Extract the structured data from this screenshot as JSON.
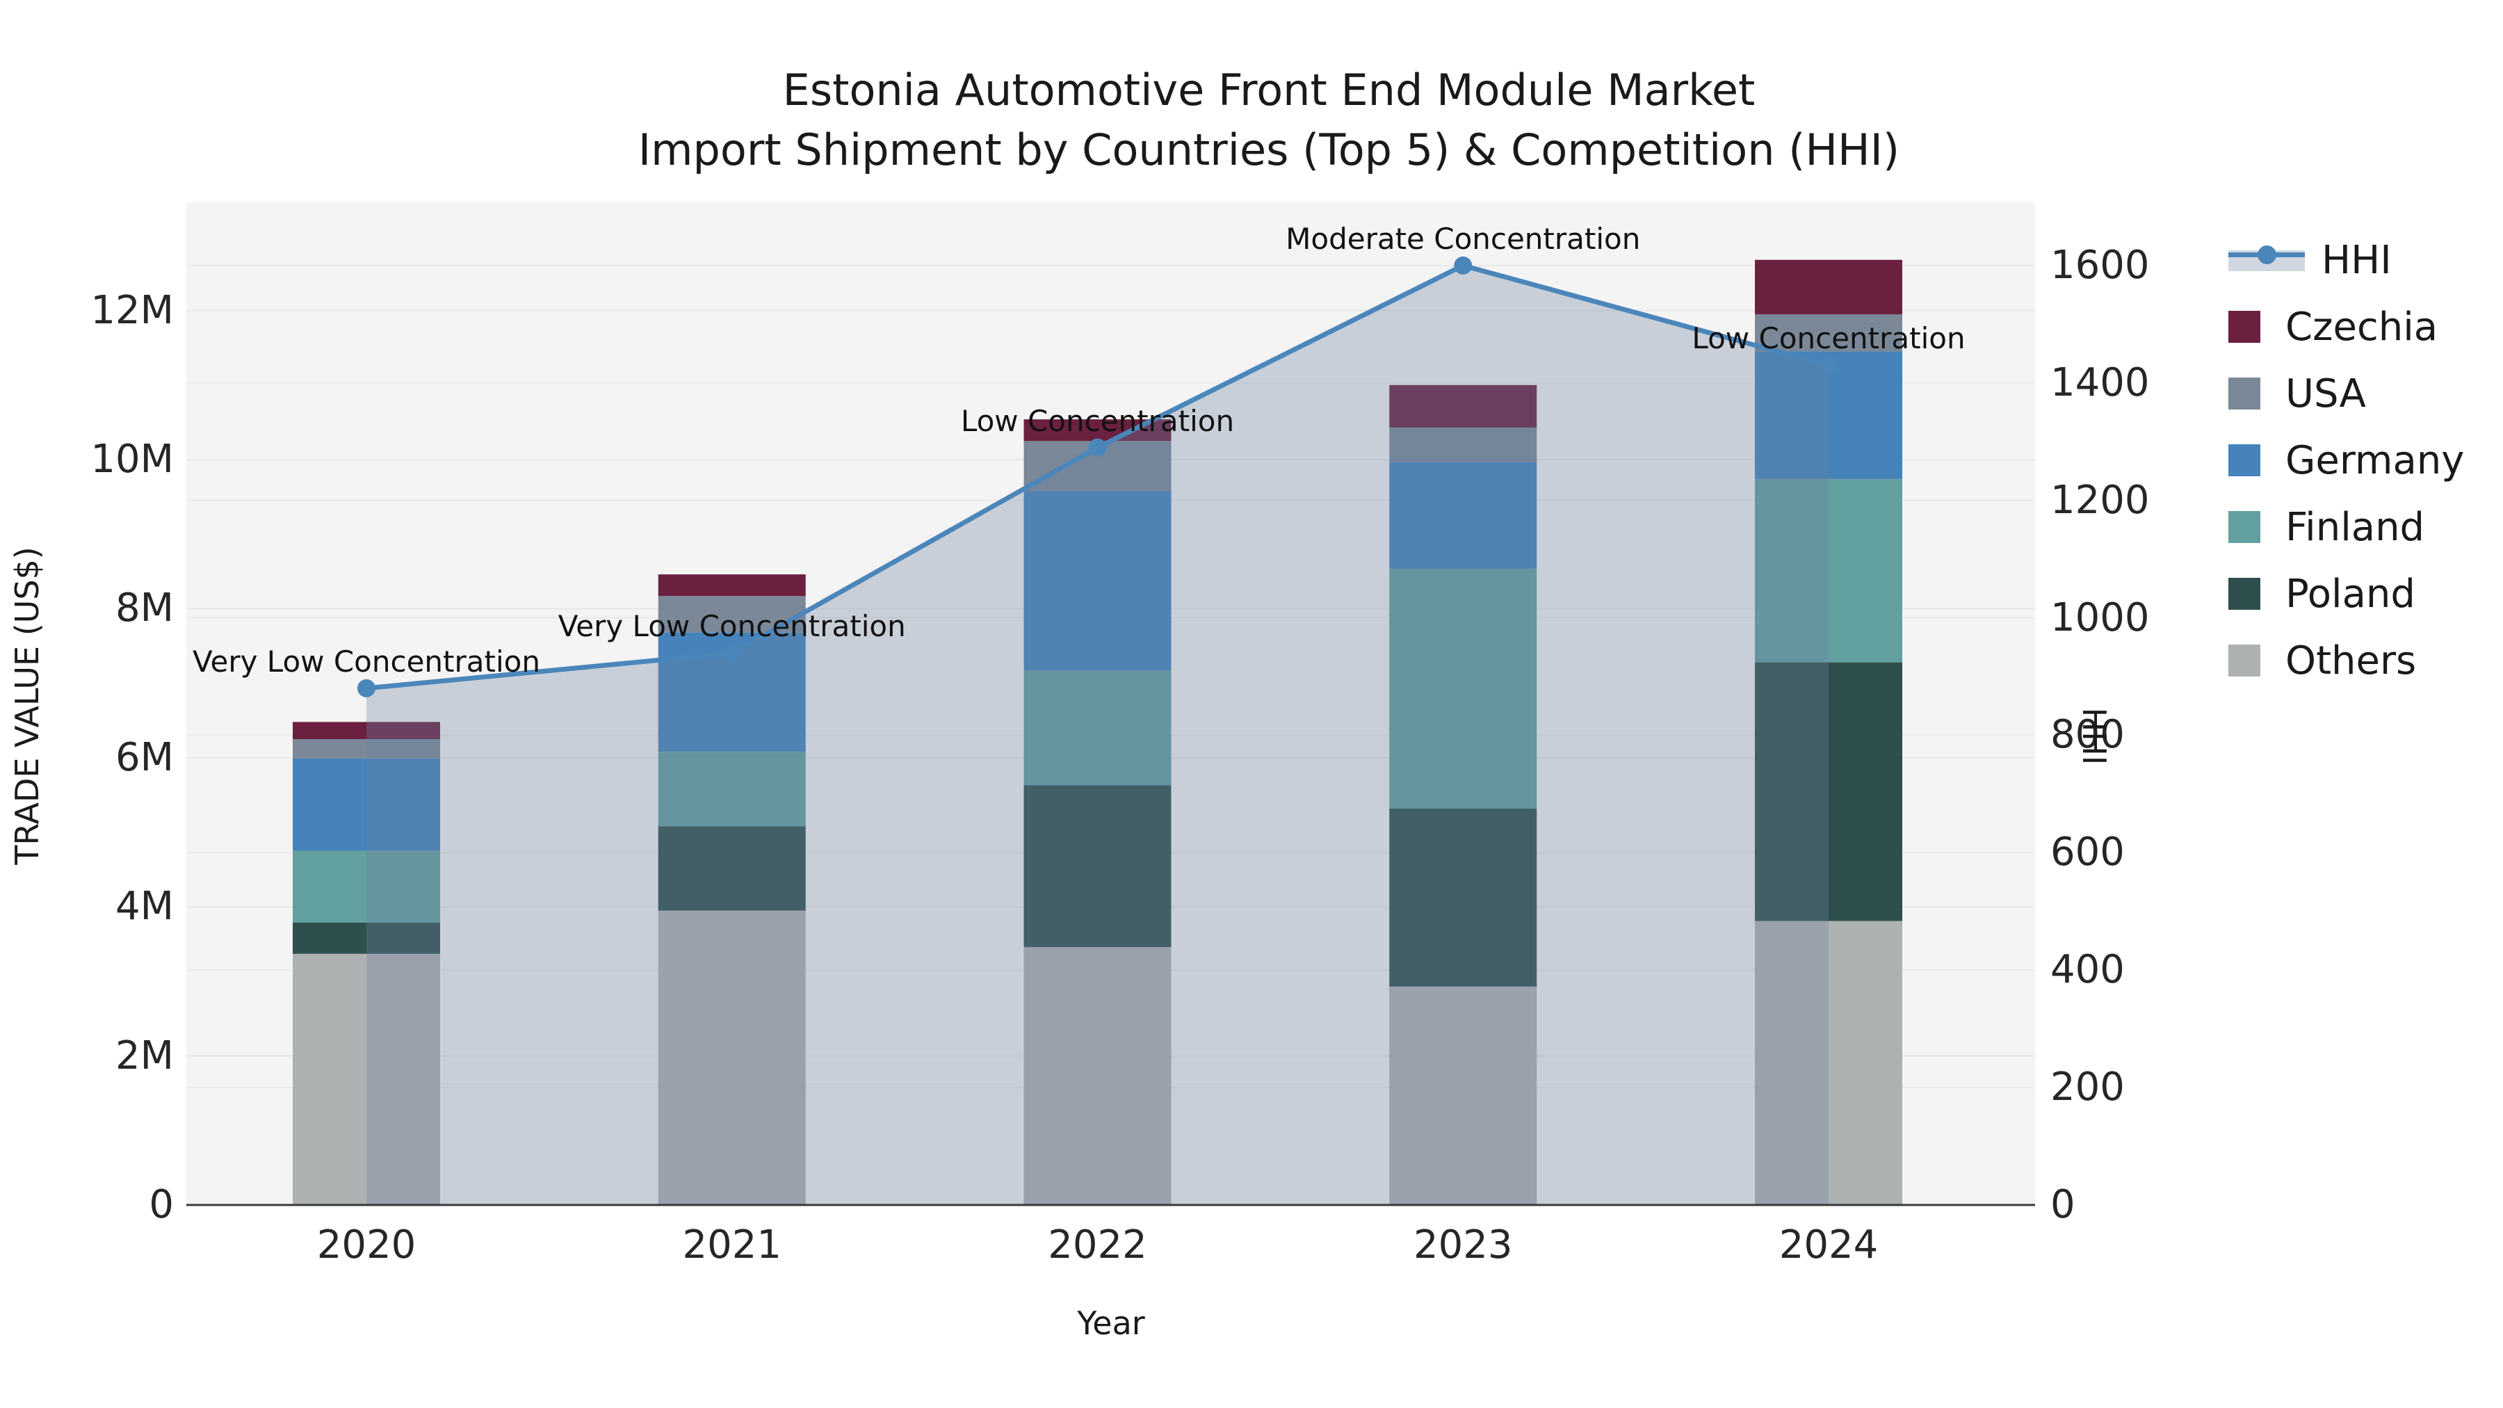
{
  "title": {
    "line1": "Estonia Automotive Front End Module Market",
    "line2": "Import Shipment by Countries (Top 5) & Competition (HHI)"
  },
  "axes": {
    "x": {
      "label": "Year",
      "categories": [
        "2020",
        "2021",
        "2022",
        "2023",
        "2024"
      ]
    },
    "y_left": {
      "label": "TRADE VALUE (US$)",
      "tick_labels": [
        "0",
        "2M",
        "4M",
        "6M",
        "8M",
        "10M",
        "12M"
      ],
      "tick_values": [
        0,
        2,
        4,
        6,
        8,
        10,
        12
      ]
    },
    "y_right": {
      "label": "HHI",
      "tick_labels": [
        "0",
        "200",
        "400",
        "600",
        "800",
        "1000",
        "1200",
        "1400",
        "1600"
      ],
      "tick_values": [
        0,
        200,
        400,
        600,
        800,
        1000,
        1200,
        1400,
        1600
      ]
    }
  },
  "legend": {
    "items": [
      {
        "label": "HHI",
        "type": "line",
        "color": "#4b86ba"
      },
      {
        "label": "Czechia",
        "type": "patch",
        "color": "#6b2040"
      },
      {
        "label": "USA",
        "type": "patch",
        "color": "#7a8898"
      },
      {
        "label": "Germany",
        "type": "patch",
        "color": "#4583ba"
      },
      {
        "label": "Finland",
        "type": "patch",
        "color": "#62a0a0"
      },
      {
        "label": "Poland",
        "type": "patch",
        "color": "#2e4f4d"
      },
      {
        "label": "Others",
        "type": "patch",
        "color": "#aeb1b1"
      }
    ]
  },
  "chart_data": {
    "type": "bar+line",
    "title": "Estonia Automotive Front End Module Market — Import Shipment by Countries (Top 5) & Competition (HHI)",
    "xlabel": "Year",
    "ylabel_left": "TRADE VALUE (US$)",
    "ylabel_right": "HHI",
    "categories": [
      "2020",
      "2021",
      "2022",
      "2023",
      "2024"
    ],
    "unit": "million US$",
    "stack_order_bottom_to_top": [
      "Others",
      "Poland",
      "Finland",
      "Germany",
      "USA",
      "Czechia"
    ],
    "series": [
      {
        "name": "Others",
        "color": "#aeb1b1",
        "values": [
          3.37,
          3.95,
          3.46,
          2.93,
          3.81
        ]
      },
      {
        "name": "Poland",
        "color": "#2e4f4d",
        "values": [
          0.42,
          1.13,
          2.17,
          2.39,
          3.47
        ]
      },
      {
        "name": "Finland",
        "color": "#62a0a0",
        "values": [
          0.96,
          1.0,
          1.54,
          3.22,
          2.46
        ]
      },
      {
        "name": "Germany",
        "color": "#4583ba",
        "values": [
          1.24,
          1.6,
          2.41,
          1.43,
          1.71
        ]
      },
      {
        "name": "USA",
        "color": "#7a8898",
        "values": [
          0.26,
          0.49,
          0.67,
          0.46,
          0.5
        ]
      },
      {
        "name": "Czechia",
        "color": "#6b2040",
        "values": [
          0.23,
          0.29,
          0.29,
          0.57,
          0.73
        ]
      }
    ],
    "totals": [
      6.48,
      8.46,
      10.54,
      11.0,
      12.68
    ],
    "line": {
      "name": "HHI",
      "values": [
        880,
        940,
        1290,
        1600,
        1430
      ],
      "color": "#4b86ba",
      "fill": "rgba(108,132,163,0.32)",
      "annotations": [
        "Very Low Concentration",
        "Very Low Concentration",
        "Low Concentration",
        "Moderate Concentration",
        "Low Concentration"
      ]
    },
    "ylim_left": [
      0,
      13.45
    ],
    "ylim_right": [
      0,
      1708
    ],
    "grid": true,
    "legend_position": "right"
  }
}
